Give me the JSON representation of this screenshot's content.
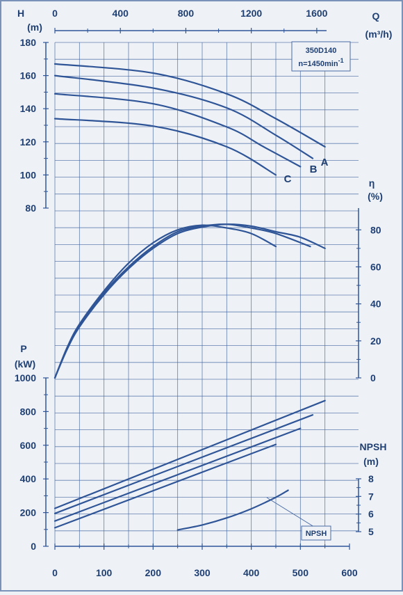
{
  "chart_data": [
    {
      "type": "line",
      "name_id": "head",
      "ylabel": "H",
      "yunit": "(m)",
      "xlabel_top": "Q",
      "xunit_top": "(m³/h)",
      "top_ticks": [
        "0",
        "400",
        "800",
        "1200",
        "1600"
      ],
      "yticks": [
        "80",
        "100",
        "120",
        "140",
        "160",
        "180"
      ],
      "ylim": [
        80,
        180
      ],
      "xlim_q": [
        0,
        1600
      ],
      "model": "350D140",
      "speed_prefix": "n=1450min",
      "speed_sup": "-1",
      "series": [
        {
          "name": "A",
          "x": [
            0,
            200,
            350,
            450,
            550
          ],
          "y": [
            167,
            161.5,
            149,
            134,
            117
          ]
        },
        {
          "name": "B",
          "x": [
            0,
            200,
            350,
            450,
            525
          ],
          "y": [
            160,
            152.5,
            140.5,
            124,
            110
          ]
        },
        {
          "name": "",
          "x": [
            0,
            200,
            350,
            425,
            500
          ],
          "y": [
            149,
            143,
            129,
            117,
            105
          ]
        },
        {
          "name": "C",
          "x": [
            0,
            200,
            350,
            450
          ],
          "y": [
            134,
            129.5,
            117,
            100
          ]
        }
      ]
    },
    {
      "type": "line",
      "name_id": "efficiency",
      "ylabel": "η",
      "yunit": "(%)",
      "yticks": [
        "0",
        "20",
        "40",
        "60",
        "80"
      ],
      "ylim": [
        0,
        85
      ],
      "series": [
        {
          "name": "A",
          "x": [
            0,
            25,
            50,
            100,
            150,
            200,
            250,
            300,
            350,
            400,
            450,
            500,
            550
          ],
          "y": [
            0,
            15.5,
            27.5,
            45,
            59,
            70,
            78,
            81.5,
            83,
            82,
            79,
            76,
            70
          ]
        },
        {
          "name": "B",
          "x": [
            0,
            25,
            50,
            100,
            150,
            200,
            250,
            300,
            350,
            400,
            450,
            520
          ],
          "y": [
            0,
            16,
            28,
            46,
            60,
            71,
            79,
            82,
            83,
            81,
            78,
            71
          ]
        },
        {
          "name": "C",
          "x": [
            0,
            25,
            50,
            100,
            150,
            200,
            250,
            300,
            350,
            400,
            450
          ],
          "y": [
            0,
            16.5,
            29,
            47,
            62,
            73,
            80,
            82.5,
            81,
            78,
            71
          ]
        }
      ]
    },
    {
      "type": "line",
      "name_id": "power",
      "ylabel": "P",
      "yunit": "(kW)",
      "xlabel": "",
      "xticks": [
        "0",
        "100",
        "200",
        "300",
        "400",
        "500",
        "600"
      ],
      "yticks": [
        "0",
        "200",
        "400",
        "600",
        "800",
        "1000"
      ],
      "ylim": [
        0,
        1000
      ],
      "xlim": [
        0,
        600
      ],
      "series": [
        {
          "name": "A",
          "x": [
            0,
            550
          ],
          "y": [
            225,
            865
          ]
        },
        {
          "name": "B",
          "x": [
            0,
            525
          ],
          "y": [
            195,
            780
          ]
        },
        {
          "name": "",
          "x": [
            0,
            500
          ],
          "y": [
            150,
            700
          ]
        },
        {
          "name": "C",
          "x": [
            0,
            450
          ],
          "y": [
            110,
            605
          ]
        }
      ]
    },
    {
      "type": "line",
      "name_id": "npsh",
      "ylabel": "NPSH",
      "yunit": "(m)",
      "yticks": [
        "5",
        "6",
        "7",
        "8"
      ],
      "ylim": [
        5,
        8
      ],
      "series": [
        {
          "name": "NPSH",
          "x": [
            250,
            300,
            350,
            400,
            450,
            475
          ],
          "y": [
            5.1,
            5.38,
            5.78,
            6.3,
            6.95,
            7.35
          ]
        }
      ]
    }
  ],
  "labels": {
    "curve_a": "A",
    "curve_b": "B",
    "curve_c": "C",
    "npsh_tag": "NPSH"
  },
  "colors": {
    "line": "#2f5597",
    "grid": "#4a6aa3",
    "background": "#eef2f7"
  }
}
